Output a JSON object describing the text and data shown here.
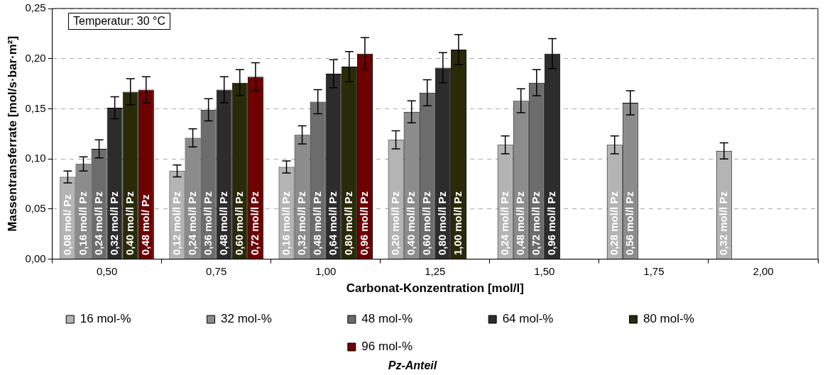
{
  "chart_data": {
    "type": "bar",
    "xlabel": "Carbonat-Konzentration [mol/l]",
    "ylabel": "Massentransferrate [mol/s·bar·m²]",
    "legend_title": "Pz-Anteil",
    "annotations": [
      "Temperatur: 30 °C",
      "0,08 mol/ Pz",
      "0,16 mol/l Pz",
      "0,24 mol/l Pz",
      "0,32 mol/l Pz",
      "0,40 mol/l Pz",
      "0,48 mol/ Pz",
      "0,12 mol/l Pz",
      "0,24 mol/l Pz",
      "0,36 mol/l Pz",
      "0,48 mol/l Pz",
      "0,60 mol/l Pz",
      "0,72 mol/l Pz",
      "0,16 mol/l Pz",
      "0,32 mol/l Pz",
      "0,48 mol/l Pz",
      "0,64 mol/l Pz",
      "0,80 mol/l Pz",
      "0,96 mol/l Pz",
      "0,20 mol/l Pz",
      "0,40 mol/l Pz",
      "0,60 mol/l Pz",
      "0,80 mol/l Pz",
      "1,00 mol/l Pz",
      "0,24 mol/l Pz",
      "0,48 mol/l Pz",
      "0,72 mol/l Pz",
      "0,96 mol/l Pz",
      "0,28 mol/l Pz",
      "0,56 mol/l Pz",
      "0,32 mol/l Pz"
    ],
    "categories": [
      "0,50",
      "0,75",
      "1,00",
      "1,25",
      "1,50",
      "1,75",
      "2,00"
    ],
    "series": [
      {
        "name": "16 mol-%",
        "color": "#b4b4b4",
        "values": [
          0.082,
          0.088,
          0.092,
          0.119,
          0.114,
          0.114,
          0.108
        ],
        "errors": [
          0.006,
          0.006,
          0.006,
          0.009,
          0.009,
          0.009,
          0.008
        ]
      },
      {
        "name": "32 mol-%",
        "color": "#8c8c8c",
        "values": [
          0.095,
          0.121,
          0.124,
          0.147,
          0.158,
          0.156,
          null
        ],
        "errors": [
          0.007,
          0.009,
          0.009,
          0.011,
          0.012,
          0.012,
          null
        ]
      },
      {
        "name": "48 mol-%",
        "color": "#6c6c6c",
        "values": [
          0.11,
          0.149,
          0.157,
          0.166,
          0.176,
          null,
          null
        ],
        "errors": [
          0.009,
          0.011,
          0.012,
          0.013,
          0.013,
          null,
          null
        ]
      },
      {
        "name": "64 mol-%",
        "color": "#2c2c2c",
        "values": [
          0.151,
          0.169,
          0.185,
          0.191,
          0.205,
          null,
          null
        ],
        "errors": [
          0.011,
          0.013,
          0.014,
          0.015,
          0.015,
          null,
          null
        ]
      },
      {
        "name": "80 mol-%",
        "color": "#2a2a08",
        "values": [
          0.167,
          0.176,
          0.192,
          0.209,
          null,
          null,
          null
        ],
        "errors": [
          0.013,
          0.013,
          0.015,
          0.015,
          null,
          null,
          null
        ]
      },
      {
        "name": "96 mol-%",
        "color": "#6e0000",
        "values": [
          0.169,
          0.182,
          0.205,
          null,
          null,
          null,
          null
        ],
        "errors": [
          0.013,
          0.014,
          0.016,
          null,
          null,
          null,
          null
        ]
      }
    ],
    "ylim": [
      0,
      0.25
    ],
    "yticks": [
      {
        "value": 0,
        "label": "0,00"
      },
      {
        "value": 0.05,
        "label": "0,05"
      },
      {
        "value": 0.1,
        "label": "0,10"
      },
      {
        "value": 0.15,
        "label": "0,15"
      },
      {
        "value": 0.2,
        "label": "0,20"
      },
      {
        "value": 0.25,
        "label": "0,25"
      }
    ],
    "grid": "y",
    "legend": "bottom"
  }
}
